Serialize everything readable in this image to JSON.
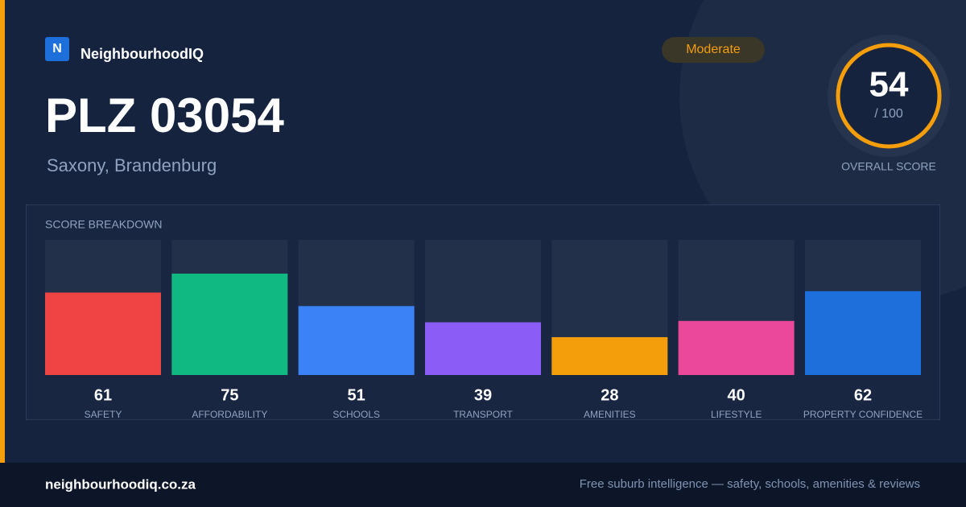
{
  "brand": "NeighbourhoodIQ",
  "logo_letter": "N",
  "title": "PLZ 03054",
  "subtitle": "Saxony, Brandenburg",
  "badge": "Moderate",
  "score": {
    "value": 54,
    "max_label": "/ 100",
    "caption": "OVERALL SCORE"
  },
  "chart_data": {
    "type": "bar",
    "title": "SCORE BREAKDOWN",
    "categories": [
      "SAFETY",
      "AFFORDABILITY",
      "SCHOOLS",
      "TRANSPORT",
      "AMENITIES",
      "LIFESTYLE",
      "PROPERTY CONFIDENCE"
    ],
    "values": [
      61,
      75,
      51,
      39,
      28,
      40,
      62
    ],
    "colors": [
      "#ef4444",
      "#10b981",
      "#3b82f6",
      "#8b5cf6",
      "#f59e0b",
      "#ec4899",
      "#1d6fdc"
    ],
    "ylim": [
      0,
      100
    ]
  },
  "footer": {
    "domain": "neighbourhoodiq.co.za",
    "tagline": "Free suburb intelligence — safety, schools, amenities & reviews"
  }
}
